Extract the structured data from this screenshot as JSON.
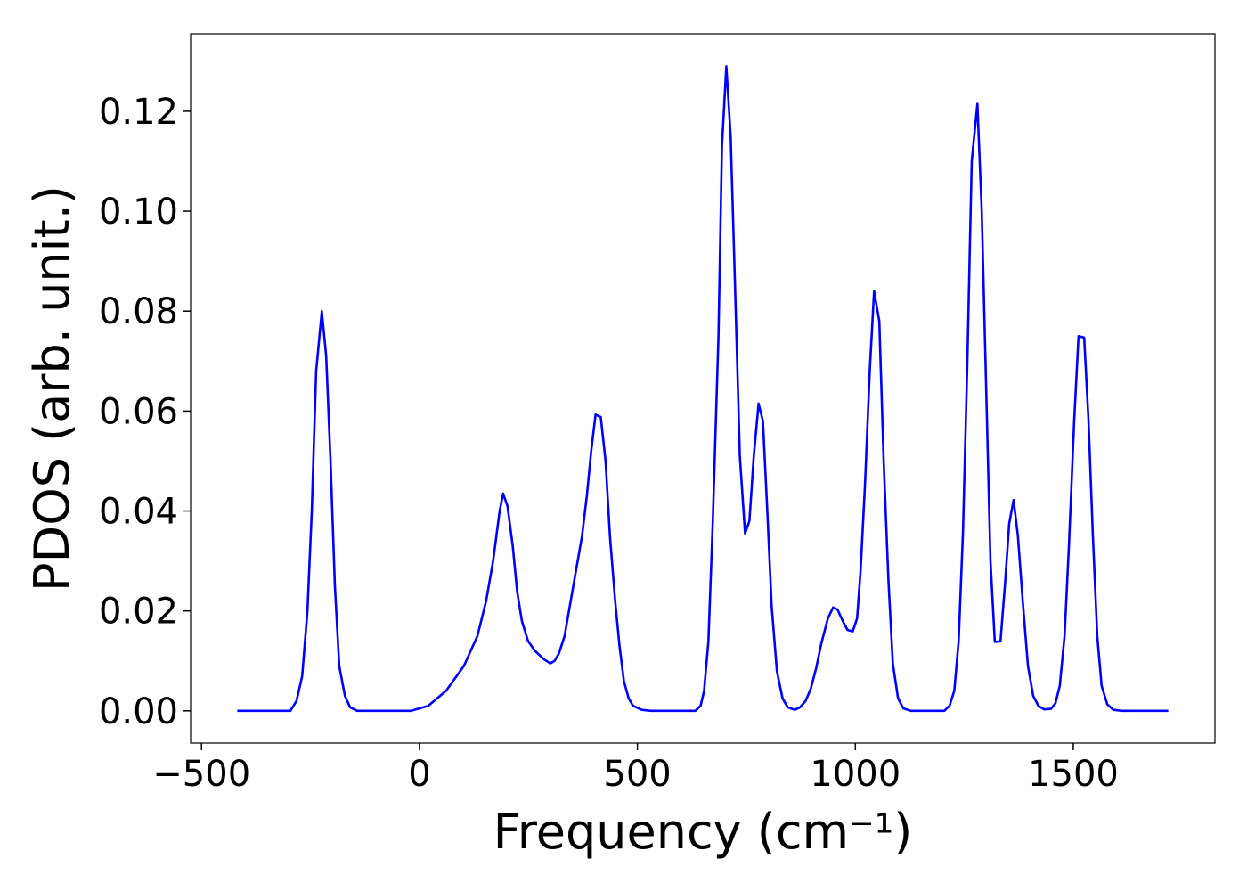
{
  "chart_data": {
    "type": "line",
    "xlabel": "Frequency (cm⁻¹)",
    "ylabel": "PDOS (arb. unit.)",
    "color": "#0000ff",
    "xlim": [
      -525,
      1825
    ],
    "ylim": [
      -0.00645,
      0.1355
    ],
    "xticks": [
      {
        "value": -500,
        "label": "−500"
      },
      0,
      500,
      1000,
      1500
    ],
    "yticks": [
      {
        "value": 0,
        "label": "0.00"
      },
      0.02,
      0.04,
      0.06,
      0.08,
      {
        "value": 0.1,
        "label": "0.10"
      },
      0.12
    ],
    "x": [
      -418,
      -296,
      -282,
      -269,
      -257,
      -247,
      -237,
      -224,
      -214,
      -204,
      -194,
      -184,
      -171,
      -159,
      -143,
      -20,
      20,
      61,
      102,
      133,
      153,
      169,
      184,
      192,
      202,
      214,
      224,
      235,
      249,
      265,
      286,
      300,
      310,
      320,
      333,
      347,
      361,
      373,
      384,
      394,
      404,
      416,
      427,
      437,
      449,
      459,
      469,
      480,
      490,
      510,
      531,
      633,
      645,
      653,
      663,
      673,
      686,
      694,
      704,
      714,
      724,
      735,
      747,
      757,
      767,
      778,
      788,
      798,
      808,
      820,
      833,
      845,
      861,
      873,
      886,
      898,
      910,
      922,
      937,
      949,
      959,
      971,
      982,
      994,
      1004,
      1012,
      1022,
      1033,
      1043,
      1055,
      1065,
      1076,
      1086,
      1098,
      1110,
      1127,
      1204,
      1216,
      1227,
      1237,
      1247,
      1257,
      1267,
      1280,
      1290,
      1300,
      1310,
      1320,
      1333,
      1343,
      1353,
      1363,
      1373,
      1384,
      1396,
      1408,
      1420,
      1433,
      1449,
      1459,
      1469,
      1480,
      1490,
      1502,
      1512,
      1525,
      1535,
      1545,
      1555,
      1565,
      1578,
      1592,
      1612,
      1718
    ],
    "values": [
      0,
      0,
      0.002,
      0.007,
      0.02,
      0.04,
      0.068,
      0.08,
      0.071,
      0.05,
      0.025,
      0.009,
      0.003,
      0.0007,
      0,
      0,
      0.001,
      0.004,
      0.009,
      0.015,
      0.022,
      0.03,
      0.04,
      0.0435,
      0.041,
      0.033,
      0.024,
      0.018,
      0.014,
      0.012,
      0.0103,
      0.0095,
      0.01,
      0.0115,
      0.015,
      0.022,
      0.029,
      0.035,
      0.043,
      0.052,
      0.0593,
      0.0588,
      0.05,
      0.035,
      0.022,
      0.013,
      0.006,
      0.0025,
      0.001,
      0.0002,
      0,
      0,
      0.001,
      0.004,
      0.014,
      0.038,
      0.075,
      0.113,
      0.129,
      0.115,
      0.085,
      0.051,
      0.0355,
      0.038,
      0.051,
      0.0615,
      0.058,
      0.04,
      0.021,
      0.008,
      0.0025,
      0.0007,
      0.0002,
      0.0007,
      0.002,
      0.0045,
      0.0085,
      0.0135,
      0.0185,
      0.0207,
      0.0203,
      0.018,
      0.0162,
      0.0159,
      0.0185,
      0.028,
      0.045,
      0.068,
      0.084,
      0.078,
      0.05,
      0.026,
      0.0095,
      0.0025,
      0.0005,
      0,
      0,
      0.001,
      0.004,
      0.014,
      0.036,
      0.07,
      0.11,
      0.1215,
      0.1,
      0.065,
      0.03,
      0.0138,
      0.0139,
      0.025,
      0.0375,
      0.0422,
      0.035,
      0.022,
      0.009,
      0.003,
      0.001,
      0.0003,
      0.0004,
      0.0015,
      0.005,
      0.015,
      0.033,
      0.058,
      0.075,
      0.0747,
      0.058,
      0.035,
      0.015,
      0.005,
      0.0013,
      0.0002,
      0,
      0
    ]
  }
}
